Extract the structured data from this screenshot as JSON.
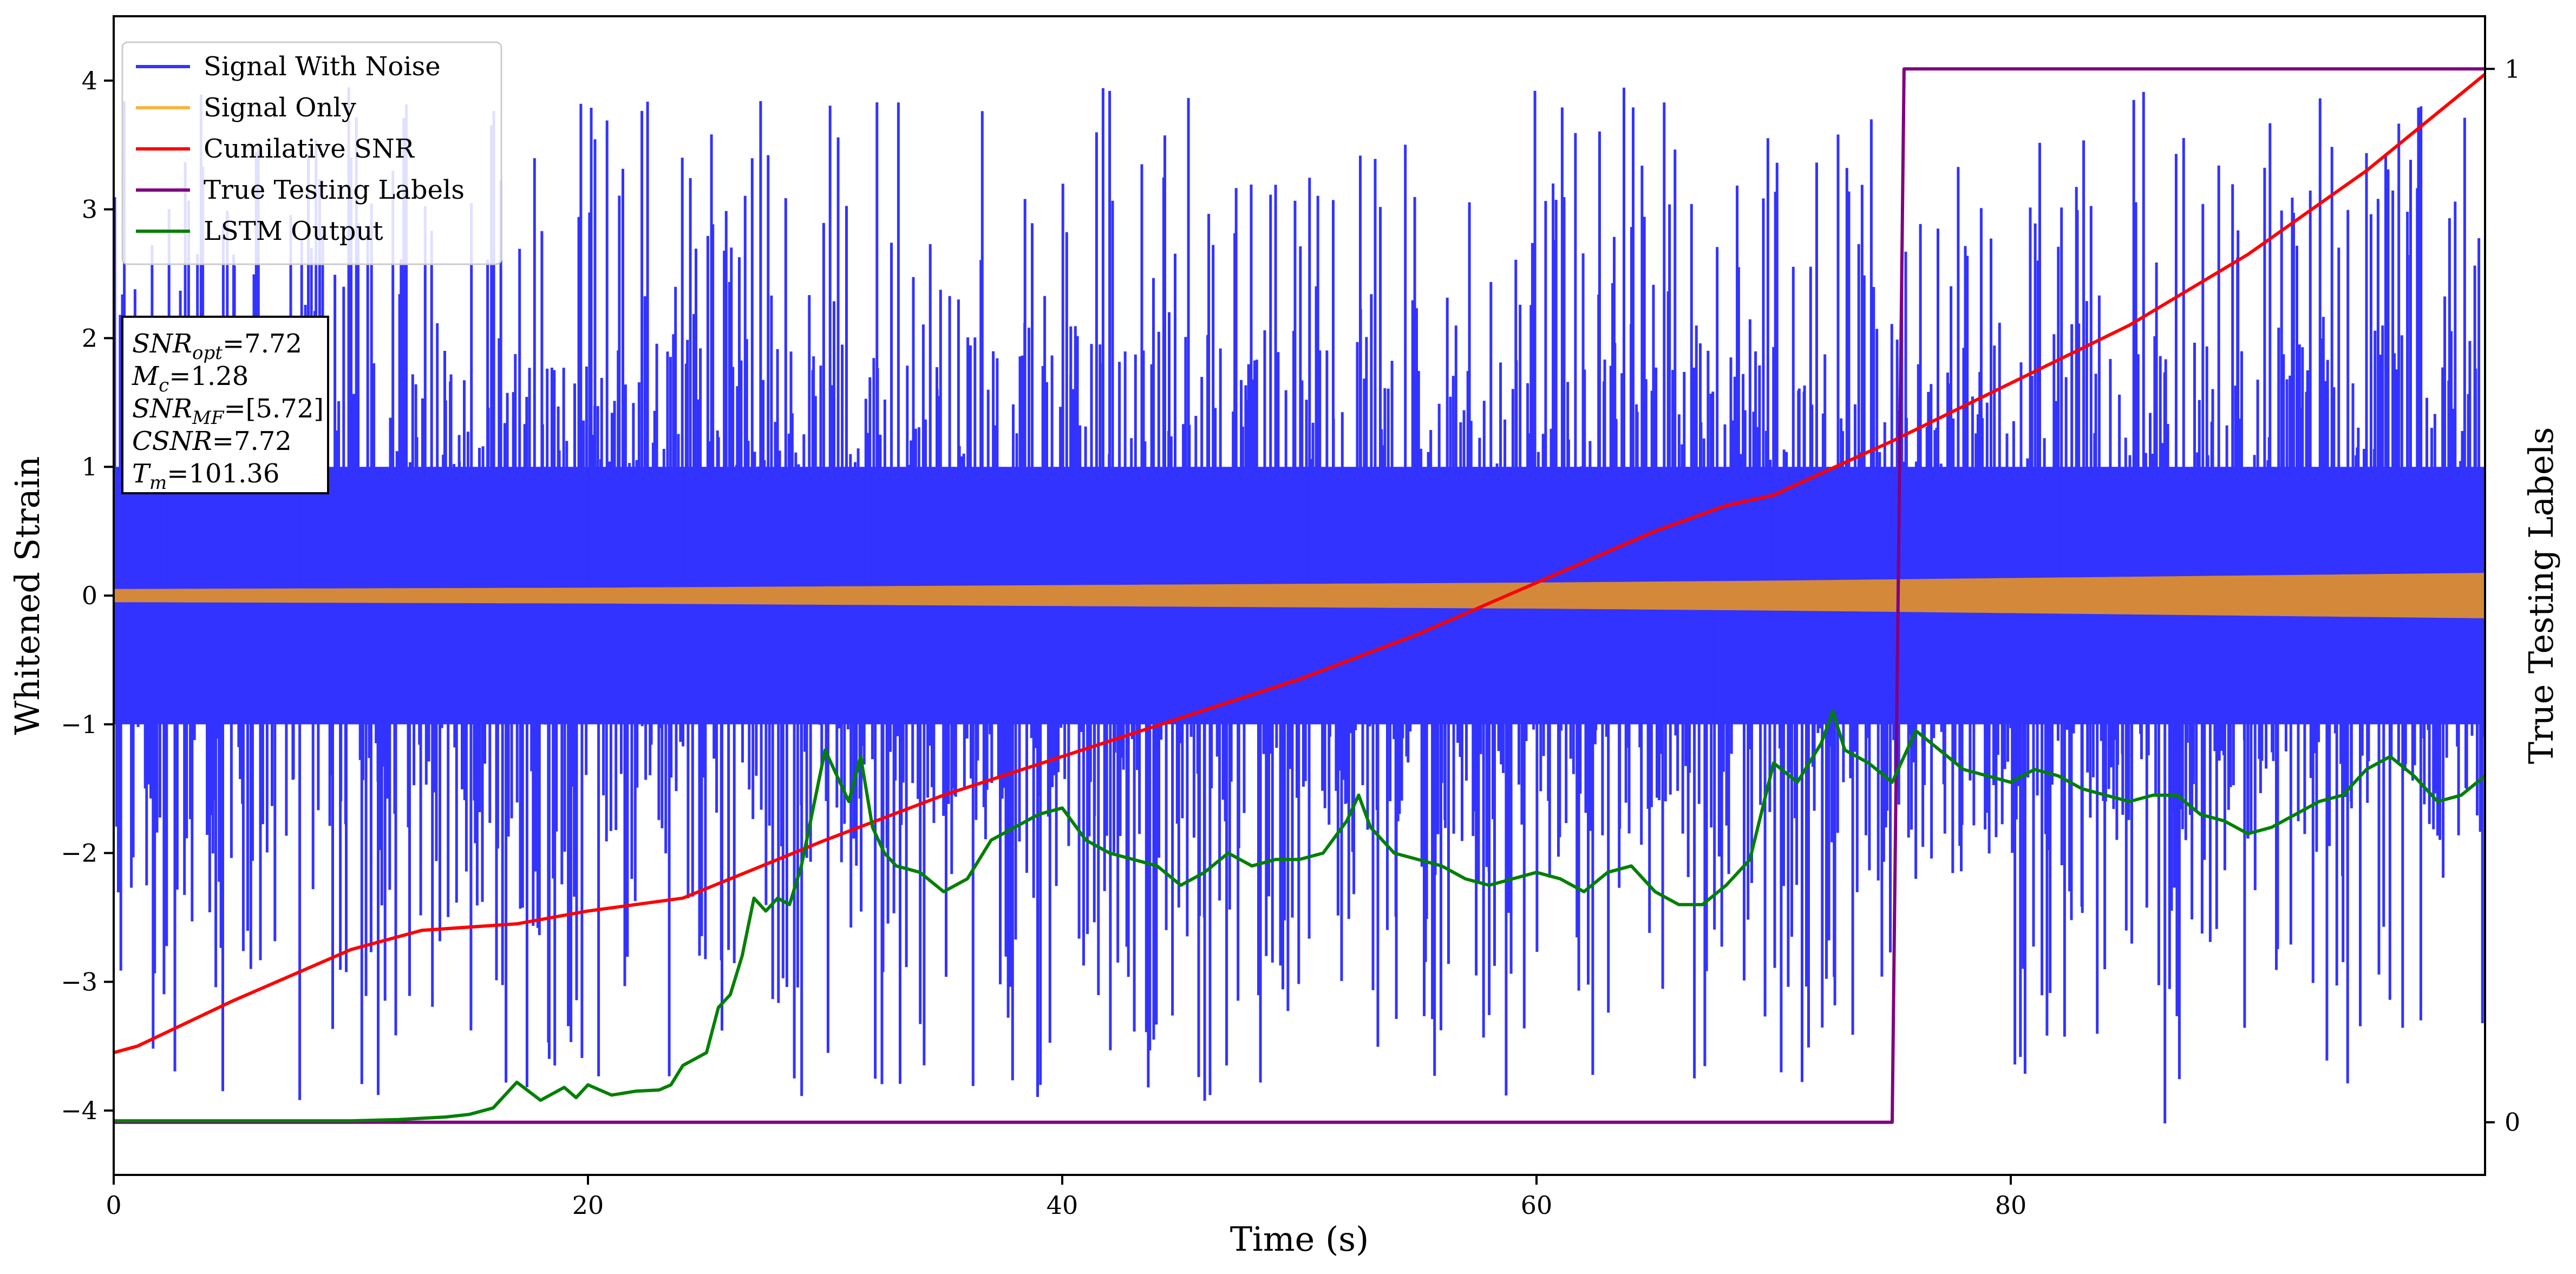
{
  "chart_data": {
    "type": "line",
    "xlabel": "Time (s)",
    "ylabel": "Whitened Strain",
    "y2label": "True Testing Labels",
    "xlim": [
      0,
      100
    ],
    "ylim": [
      -4.5,
      4.5
    ],
    "y2lim": [
      -0.05,
      1.05
    ],
    "x_ticks": [
      0,
      20,
      40,
      60,
      80
    ],
    "y_ticks": [
      -4,
      -3,
      -2,
      -1,
      0,
      1,
      2,
      3,
      4
    ],
    "y2_ticks": [
      0,
      1
    ],
    "grid": false,
    "legend_position": "upper-left",
    "legend": [
      {
        "label": "Signal With Noise",
        "color": "#3333ff"
      },
      {
        "label": "Signal Only",
        "color": "#f5b642"
      },
      {
        "label": "Cumilative SNR",
        "color": "#ff0000"
      },
      {
        "label": "True Testing Labels",
        "color": "#800080"
      },
      {
        "label": "LSTM Output",
        "color": "#008000"
      }
    ],
    "annotation": {
      "lines": [
        {
          "name": "SNR",
          "sub": "opt",
          "value": "=7.72"
        },
        {
          "name": "M",
          "sub": "c",
          "value": "=1.28"
        },
        {
          "name": "SNR",
          "sub": "MF",
          "value": "=[5.72]"
        },
        {
          "name": "CSNR",
          "sub": "",
          "value": "=7.72"
        },
        {
          "name": "T",
          "sub": "m",
          "value": "=101.36"
        }
      ]
    },
    "series": [
      {
        "name": "Signal With Noise",
        "color": "#3333ff",
        "style": "noise",
        "band_low": -1.0,
        "band_high": 1.0,
        "spike_min": -4.1,
        "spike_max": 3.95
      },
      {
        "name": "Signal Only",
        "color": "#d4893a",
        "style": "envelope",
        "x": [
          0,
          10,
          20,
          30,
          40,
          50,
          60,
          70,
          80,
          90,
          100
        ],
        "amplitude": [
          0.045,
          0.05,
          0.055,
          0.065,
          0.075,
          0.085,
          0.095,
          0.11,
          0.13,
          0.15,
          0.17
        ]
      },
      {
        "name": "Cumilative SNR",
        "color": "#ff0000",
        "axis": "y",
        "x": [
          0,
          1,
          5,
          10,
          13,
          17,
          20,
          24,
          26,
          30,
          35,
          40,
          45,
          50,
          55,
          60,
          65,
          68,
          70,
          72,
          75,
          80,
          85,
          90,
          95,
          100
        ],
        "y": [
          -3.55,
          -3.5,
          -3.15,
          -2.75,
          -2.6,
          -2.55,
          -2.45,
          -2.35,
          -2.2,
          -1.9,
          -1.55,
          -1.25,
          -0.95,
          -0.65,
          -0.3,
          0.1,
          0.5,
          0.7,
          0.78,
          0.95,
          1.2,
          1.65,
          2.1,
          2.65,
          3.3,
          4.05
        ]
      },
      {
        "name": "True Testing Labels",
        "color": "#800080",
        "axis": "y2",
        "x": [
          0,
          75.0,
          75.5,
          100
        ],
        "y": [
          0,
          0,
          1,
          1
        ]
      },
      {
        "name": "LSTM Output",
        "color": "#008000",
        "axis": "y",
        "x": [
          0,
          10,
          12,
          14,
          15,
          16,
          17,
          18,
          19,
          19.5,
          20,
          21,
          22,
          23,
          23.5,
          24,
          25,
          25.5,
          26,
          26.5,
          27,
          27.5,
          28,
          28.5,
          29,
          30,
          30.5,
          31,
          31.5,
          32,
          32.5,
          33,
          34,
          35,
          36,
          37,
          38,
          39,
          40,
          41,
          42,
          43,
          44,
          45,
          46,
          47,
          48,
          49,
          50,
          51,
          52,
          52.5,
          53,
          54,
          55,
          56,
          57,
          58,
          59,
          60,
          61,
          62,
          63,
          64,
          65,
          66,
          67,
          68,
          69,
          70,
          71,
          72,
          72.5,
          73,
          74,
          75,
          76,
          77,
          78,
          79,
          80,
          81,
          82,
          83,
          84,
          85,
          86,
          87,
          88,
          89,
          90,
          91,
          92,
          93,
          94,
          95,
          96,
          97,
          97.5,
          98,
          99,
          100
        ],
        "y": [
          -4.08,
          -4.08,
          -4.07,
          -4.05,
          -4.03,
          -3.98,
          -3.78,
          -3.92,
          -3.82,
          -3.9,
          -3.8,
          -3.88,
          -3.85,
          -3.84,
          -3.8,
          -3.65,
          -3.55,
          -3.2,
          -3.1,
          -2.8,
          -2.35,
          -2.45,
          -2.35,
          -2.4,
          -2.1,
          -1.2,
          -1.4,
          -1.6,
          -1.25,
          -1.8,
          -2.0,
          -2.1,
          -2.15,
          -2.3,
          -2.2,
          -1.9,
          -1.8,
          -1.7,
          -1.65,
          -1.9,
          -2.0,
          -2.05,
          -2.1,
          -2.25,
          -2.15,
          -2.0,
          -2.1,
          -2.05,
          -2.05,
          -2.0,
          -1.75,
          -1.55,
          -1.8,
          -2.0,
          -2.05,
          -2.1,
          -2.2,
          -2.25,
          -2.2,
          -2.15,
          -2.2,
          -2.3,
          -2.15,
          -2.1,
          -2.3,
          -2.4,
          -2.4,
          -2.25,
          -2.05,
          -1.3,
          -1.45,
          -1.15,
          -0.9,
          -1.2,
          -1.3,
          -1.45,
          -1.05,
          -1.2,
          -1.35,
          -1.4,
          -1.45,
          -1.35,
          -1.4,
          -1.5,
          -1.55,
          -1.6,
          -1.55,
          -1.55,
          -1.7,
          -1.75,
          -1.85,
          -1.8,
          -1.7,
          -1.6,
          -1.55,
          -1.35,
          -1.25,
          -1.4,
          -1.5,
          -1.6,
          -1.55,
          -1.4
        ]
      }
    ]
  }
}
